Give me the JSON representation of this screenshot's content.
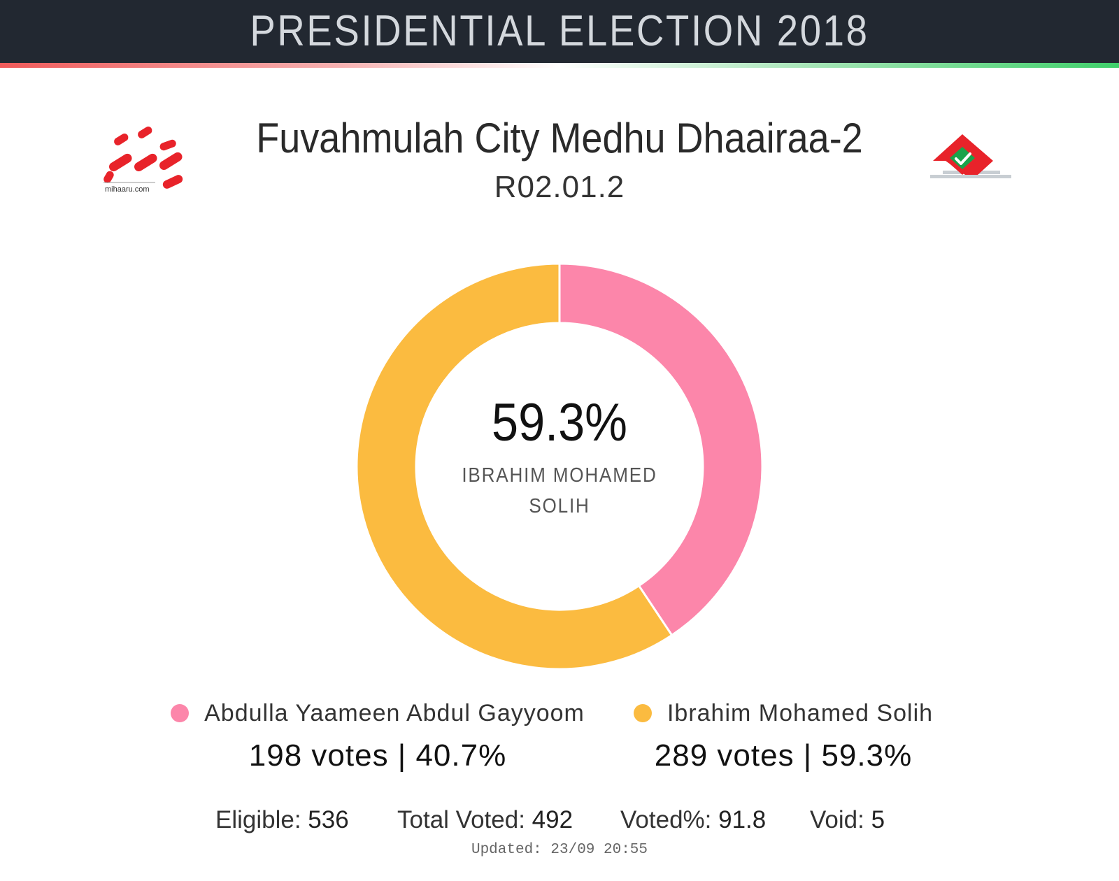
{
  "header": {
    "title": "PRESIDENTIAL ELECTION 2018"
  },
  "district": {
    "name": "Fuvahmulah City Medhu Dhaairaa-2",
    "code": "R02.01.2"
  },
  "logos": {
    "left_text": "mihaaru.com",
    "left_icon": "mihaaru-logo",
    "right_icon": "ballot-box-check-logo"
  },
  "colors": {
    "header_bg": "#222831",
    "candidate_1": "#fc86aa",
    "candidate_2": "#fbbb40",
    "logo_red": "#e8232a",
    "logo_green": "#1aa34a"
  },
  "center": {
    "percent": "59.3%",
    "name": "IBRAHIM MOHAMED SOLIH"
  },
  "legend": [
    {
      "name": "Abdulla Yaameen Abdul Gayyoom",
      "votes_text": "198 votes | 40.7%",
      "color": "#fc86aa"
    },
    {
      "name": "Ibrahim Mohamed Solih",
      "votes_text": "289 votes | 59.3%",
      "color": "#fbbb40"
    }
  ],
  "stats": {
    "eligible_label": "Eligible: ",
    "eligible_value": "536",
    "total_voted_label": "Total Voted: ",
    "total_voted_value": "492",
    "voted_pct_label": "Voted%: ",
    "voted_pct_value": "91.8",
    "void_label": "Void: ",
    "void_value": "5"
  },
  "updated": "Updated: 23/09 20:55",
  "chart_data": {
    "type": "pie",
    "categories": [
      "Abdulla Yaameen Abdul Gayyoom",
      "Ibrahim Mohamed Solih"
    ],
    "values": [
      198,
      289
    ],
    "percentages": [
      40.7,
      59.3
    ],
    "colors": [
      "#fc86aa",
      "#fbbb40"
    ],
    "style": "donut",
    "legend": "bottom"
  }
}
